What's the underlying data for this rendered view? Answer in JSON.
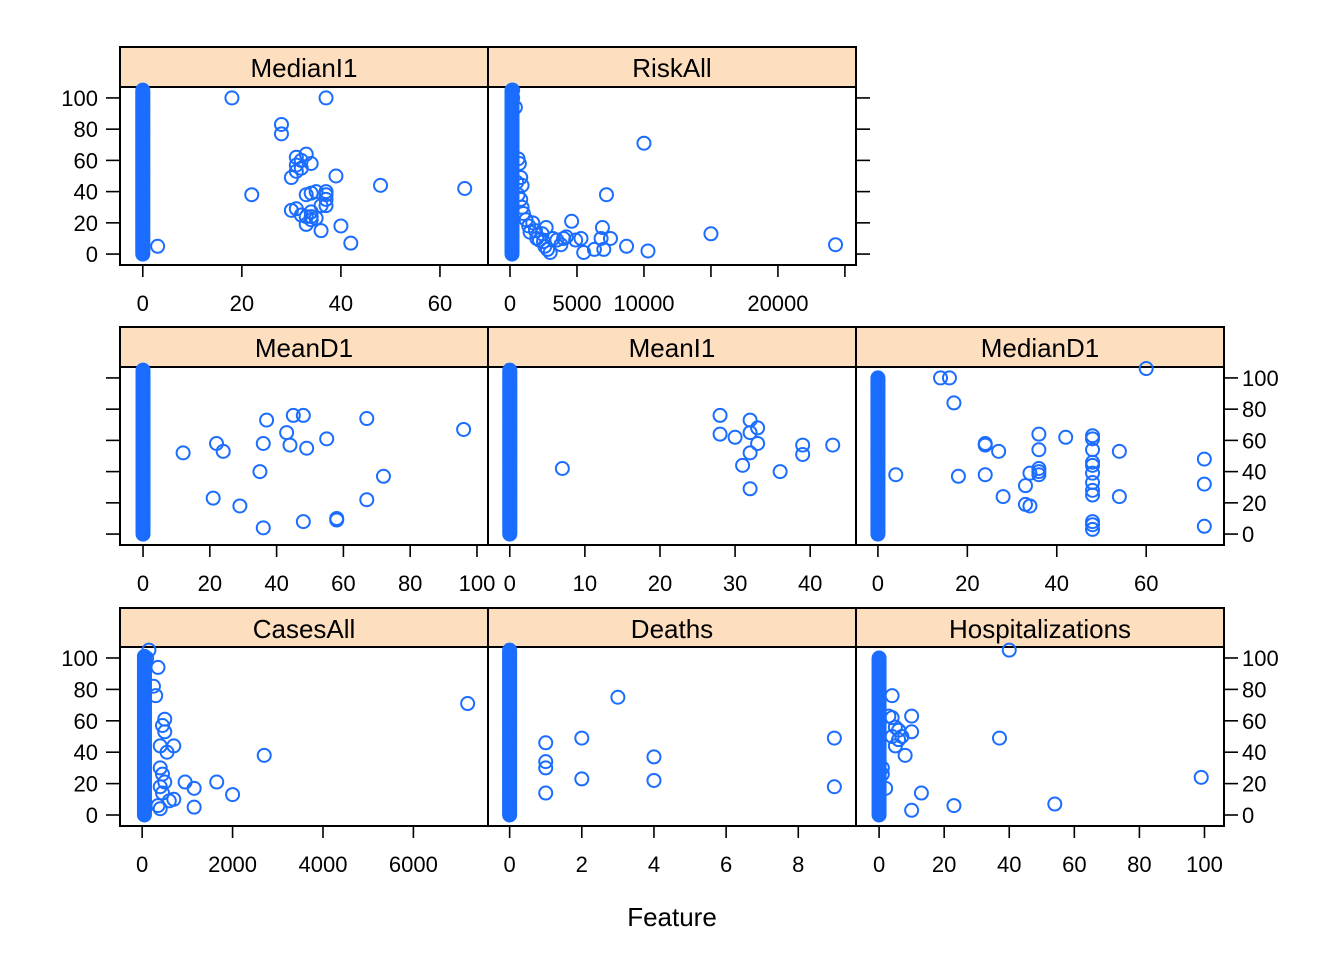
{
  "chart_data": {
    "type": "scatter",
    "layout": "lattice 3 rows x 3 columns (top row 2 panels)",
    "xlabel": "Feature",
    "ylabel": "",
    "point_color": "#1A6DFF",
    "strip_color": "#FDDEBF",
    "y_axis": {
      "range": [
        -7,
        107
      ],
      "ticks": [
        0,
        20,
        40,
        60,
        80,
        100
      ],
      "tick_labels": [
        "0",
        "20",
        "40",
        "60",
        "80",
        "100"
      ]
    },
    "panels": [
      {
        "id": "medianI1",
        "title": "MedianI1",
        "row": 0,
        "col": 0,
        "xlim": [
          -4.6,
          69.7
        ],
        "xticks": [
          0,
          20,
          40,
          60
        ],
        "xtick_labels": [
          "0",
          "20",
          "40",
          "60"
        ],
        "x_axis_side": "bottom",
        "y_labels_side": "left",
        "zero_cluster": {
          "x": 0,
          "y_min": 0,
          "y_max": 105
        },
        "points": [
          [
            3,
            5
          ],
          [
            18,
            100
          ],
          [
            37,
            100
          ],
          [
            28,
            83
          ],
          [
            28,
            77
          ],
          [
            22,
            38
          ],
          [
            31,
            62
          ],
          [
            32,
            60
          ],
          [
            33,
            64
          ],
          [
            31,
            57
          ],
          [
            32,
            55
          ],
          [
            34,
            58
          ],
          [
            31,
            53
          ],
          [
            30,
            49
          ],
          [
            39,
            50
          ],
          [
            48,
            44
          ],
          [
            65,
            42
          ],
          [
            33,
            38
          ],
          [
            34,
            39
          ],
          [
            35,
            40
          ],
          [
            37,
            40
          ],
          [
            37,
            38
          ],
          [
            37,
            35
          ],
          [
            36,
            31
          ],
          [
            37,
            31
          ],
          [
            30,
            28
          ],
          [
            31,
            29
          ],
          [
            32,
            25
          ],
          [
            33,
            24
          ],
          [
            34,
            24
          ],
          [
            34,
            27
          ],
          [
            33,
            19
          ],
          [
            36,
            15
          ],
          [
            40,
            18
          ],
          [
            42,
            7
          ],
          [
            34,
            22
          ],
          [
            35,
            23
          ]
        ]
      },
      {
        "id": "riskAll",
        "title": "RiskAll",
        "row": 0,
        "col": 1,
        "xlim": [
          -1642,
          25828
        ],
        "xticks": [
          0,
          5000,
          10000,
          15000,
          20000,
          25000
        ],
        "xtick_labels": [
          "0",
          "5000",
          "10000",
          "",
          "20000",
          ""
        ],
        "x_axis_side": "bottom",
        "y_labels_side": "right-ticks-only",
        "zero_cluster": {
          "x": 150,
          "y_min": 0,
          "y_max": 105
        },
        "points": [
          [
            200,
            105
          ],
          [
            150,
            100
          ],
          [
            200,
            100
          ],
          [
            400,
            94
          ],
          [
            600,
            61
          ],
          [
            700,
            58
          ],
          [
            800,
            49
          ],
          [
            900,
            44
          ],
          [
            500,
            46
          ],
          [
            600,
            38
          ],
          [
            800,
            35
          ],
          [
            900,
            30
          ],
          [
            1000,
            26
          ],
          [
            1200,
            22
          ],
          [
            1400,
            18
          ],
          [
            1500,
            14
          ],
          [
            1700,
            20
          ],
          [
            1900,
            15
          ],
          [
            2000,
            10
          ],
          [
            2200,
            9
          ],
          [
            2400,
            13
          ],
          [
            2500,
            8
          ],
          [
            2600,
            5
          ],
          [
            2800,
            3
          ],
          [
            3000,
            1
          ],
          [
            2700,
            17
          ],
          [
            3200,
            10
          ],
          [
            3500,
            9
          ],
          [
            3800,
            6
          ],
          [
            4000,
            10
          ],
          [
            4200,
            11
          ],
          [
            4600,
            21
          ],
          [
            4900,
            9
          ],
          [
            5300,
            10
          ],
          [
            5500,
            1
          ],
          [
            6300,
            3
          ],
          [
            6800,
            10
          ],
          [
            6900,
            17
          ],
          [
            7000,
            3
          ],
          [
            7200,
            38
          ],
          [
            7500,
            10
          ],
          [
            8700,
            5
          ],
          [
            10000,
            71
          ],
          [
            10300,
            2
          ],
          [
            15000,
            13
          ],
          [
            24300,
            6
          ]
        ]
      },
      {
        "id": "meanD1",
        "title": "MeanD1",
        "row": 1,
        "col": 0,
        "xlim": [
          -6.9,
          103.3
        ],
        "xticks": [
          0,
          20,
          40,
          60,
          80,
          100
        ],
        "xtick_labels": [
          "0",
          "20",
          "40",
          "60",
          "80",
          "100"
        ],
        "x_axis_side": "bottom",
        "y_labels_side": "none",
        "zero_cluster": {
          "x": 0,
          "y_min": 0,
          "y_max": 105
        },
        "points": [
          [
            12,
            52
          ],
          [
            21,
            23
          ],
          [
            22,
            58
          ],
          [
            24,
            53
          ],
          [
            29,
            18
          ],
          [
            35,
            40
          ],
          [
            36,
            4
          ],
          [
            36,
            58
          ],
          [
            37,
            73
          ],
          [
            43,
            65
          ],
          [
            44,
            57
          ],
          [
            45,
            76
          ],
          [
            48,
            8
          ],
          [
            48,
            76
          ],
          [
            49,
            55
          ],
          [
            55,
            61
          ],
          [
            58,
            9
          ],
          [
            58,
            10
          ],
          [
            67,
            22
          ],
          [
            67,
            74
          ],
          [
            72,
            37
          ],
          [
            96,
            67
          ]
        ]
      },
      {
        "id": "meanI1",
        "title": "MeanI1",
        "row": 1,
        "col": 1,
        "xlim": [
          -2.9,
          46.1
        ],
        "xticks": [
          0,
          10,
          20,
          30,
          40
        ],
        "xtick_labels": [
          "0",
          "10",
          "20",
          "30",
          "40"
        ],
        "x_axis_side": "bottom",
        "y_labels_side": "none",
        "zero_cluster": {
          "x": 0,
          "y_min": 0,
          "y_max": 105
        },
        "points": [
          [
            7,
            42
          ],
          [
            28,
            76
          ],
          [
            28,
            64
          ],
          [
            30,
            62
          ],
          [
            31,
            44
          ],
          [
            32,
            73
          ],
          [
            32,
            65
          ],
          [
            32,
            52
          ],
          [
            32,
            29
          ],
          [
            33,
            68
          ],
          [
            33,
            58
          ],
          [
            36,
            40
          ],
          [
            39,
            57
          ],
          [
            39,
            51
          ],
          [
            43,
            57
          ]
        ]
      },
      {
        "id": "medianD1",
        "title": "MedianD1",
        "row": 1,
        "col": 2,
        "xlim": [
          -4.9,
          77.4
        ],
        "xticks": [
          0,
          20,
          40,
          60
        ],
        "xtick_labels": [
          "0",
          "20",
          "40",
          "60"
        ],
        "x_axis_side": "bottom",
        "y_labels_side": "right",
        "zero_cluster": {
          "x": 0,
          "y_min": 0,
          "y_max": 100
        },
        "points": [
          [
            4,
            38
          ],
          [
            14,
            100
          ],
          [
            16,
            100
          ],
          [
            17,
            84
          ],
          [
            18,
            37
          ],
          [
            24,
            57
          ],
          [
            24,
            58
          ],
          [
            24,
            38
          ],
          [
            27,
            53
          ],
          [
            28,
            24
          ],
          [
            33,
            31
          ],
          [
            33,
            19
          ],
          [
            34,
            39
          ],
          [
            34,
            18
          ],
          [
            36,
            64
          ],
          [
            36,
            54
          ],
          [
            36,
            42
          ],
          [
            36,
            40
          ],
          [
            36,
            38
          ],
          [
            42,
            62
          ],
          [
            48,
            63
          ],
          [
            48,
            61
          ],
          [
            48,
            54
          ],
          [
            48,
            46
          ],
          [
            48,
            44
          ],
          [
            48,
            39
          ],
          [
            48,
            33
          ],
          [
            48,
            28
          ],
          [
            48,
            25
          ],
          [
            48,
            8
          ],
          [
            48,
            6
          ],
          [
            48,
            3
          ],
          [
            54,
            53
          ],
          [
            54,
            24
          ],
          [
            60,
            106
          ],
          [
            73,
            48
          ],
          [
            73,
            32
          ],
          [
            73,
            5
          ]
        ]
      },
      {
        "id": "casesAll",
        "title": "CasesAll",
        "row": 2,
        "col": 0,
        "xlim": [
          -490,
          7650
        ],
        "xticks": [
          0,
          2000,
          4000,
          6000
        ],
        "xtick_labels": [
          "0",
          "2000",
          "4000",
          "6000"
        ],
        "x_axis_side": "bottom",
        "y_labels_side": "left",
        "zero_cluster": {
          "x": 50,
          "y_min": 0,
          "y_max": 101
        },
        "points": [
          [
            150,
            105
          ],
          [
            100,
            100
          ],
          [
            350,
            94
          ],
          [
            250,
            82
          ],
          [
            300,
            76
          ],
          [
            500,
            61
          ],
          [
            450,
            57
          ],
          [
            500,
            53
          ],
          [
            400,
            44
          ],
          [
            700,
            44
          ],
          [
            550,
            40
          ],
          [
            400,
            30
          ],
          [
            450,
            26
          ],
          [
            500,
            21
          ],
          [
            400,
            18
          ],
          [
            450,
            14
          ],
          [
            600,
            9
          ],
          [
            700,
            10
          ],
          [
            350,
            6
          ],
          [
            400,
            4
          ],
          [
            950,
            21
          ],
          [
            1150,
            17
          ],
          [
            1150,
            5
          ],
          [
            1650,
            21
          ],
          [
            2000,
            13
          ],
          [
            2700,
            38
          ],
          [
            7200,
            71
          ]
        ]
      },
      {
        "id": "deaths",
        "title": "Deaths",
        "row": 2,
        "col": 1,
        "xlim": [
          -0.6,
          9.6
        ],
        "xticks": [
          0,
          2,
          4,
          6,
          8
        ],
        "xtick_labels": [
          "0",
          "2",
          "4",
          "6",
          "8"
        ],
        "x_axis_side": "bottom",
        "y_labels_side": "none",
        "zero_cluster": {
          "x": 0,
          "y_min": 0,
          "y_max": 105
        },
        "points": [
          [
            1,
            46
          ],
          [
            1,
            34
          ],
          [
            1,
            30
          ],
          [
            1,
            14
          ],
          [
            2,
            49
          ],
          [
            2,
            23
          ],
          [
            3,
            75
          ],
          [
            4,
            37
          ],
          [
            4,
            22
          ],
          [
            9,
            49
          ],
          [
            9,
            18
          ]
        ]
      },
      {
        "id": "hospitalizations",
        "title": "Hospitalizations",
        "row": 2,
        "col": 2,
        "xlim": [
          -7.1,
          106
        ],
        "xticks": [
          0,
          20,
          40,
          60,
          80,
          100
        ],
        "xtick_labels": [
          "0",
          "20",
          "40",
          "60",
          "80",
          "100"
        ],
        "x_axis_side": "bottom",
        "y_labels_side": "right",
        "zero_cluster": {
          "x": 0,
          "y_min": 0,
          "y_max": 100
        },
        "points": [
          [
            4,
            76
          ],
          [
            3,
            63
          ],
          [
            4,
            62
          ],
          [
            5,
            56
          ],
          [
            6,
            54
          ],
          [
            7,
            50
          ],
          [
            4,
            50
          ],
          [
            6,
            48
          ],
          [
            10,
            63
          ],
          [
            10,
            53
          ],
          [
            5,
            44
          ],
          [
            8,
            38
          ],
          [
            1,
            30
          ],
          [
            1,
            26
          ],
          [
            2,
            17
          ],
          [
            13,
            14
          ],
          [
            10,
            3
          ],
          [
            23,
            6
          ],
          [
            37,
            49
          ],
          [
            40,
            105
          ],
          [
            54,
            7
          ],
          [
            99,
            24
          ]
        ]
      }
    ]
  }
}
